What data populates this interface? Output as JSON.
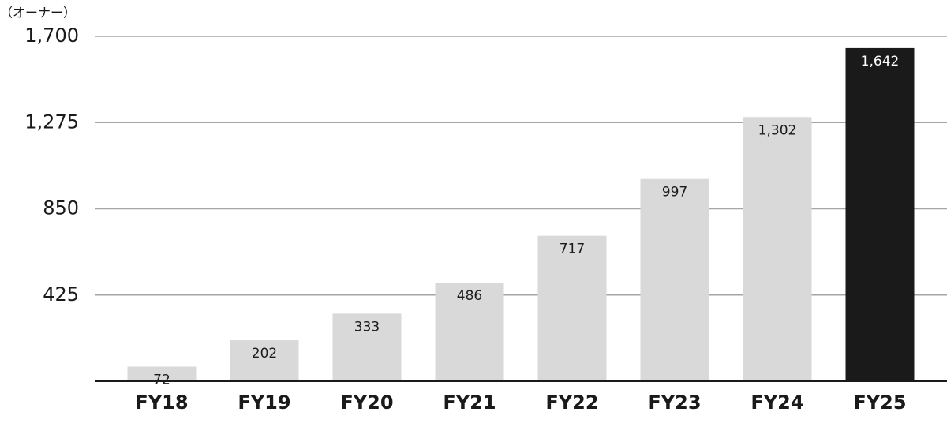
{
  "chart_data": {
    "type": "bar",
    "y_label": "（オーナー）",
    "categories": [
      "FY18",
      "FY19",
      "FY20",
      "FY21",
      "FY22",
      "FY23",
      "FY24",
      "FY25"
    ],
    "values": [
      72,
      202,
      333,
      486,
      717,
      997,
      1302,
      1642
    ],
    "value_labels": [
      "72",
      "202",
      "333",
      "486",
      "717",
      "997",
      "1,302",
      "1,642"
    ],
    "colors": [
      "#d9d9d9",
      "#d9d9d9",
      "#d9d9d9",
      "#d9d9d9",
      "#d9d9d9",
      "#d9d9d9",
      "#d9d9d9",
      "#1a1a1a"
    ],
    "ylim": [
      0,
      1700
    ],
    "yticks": [
      425,
      850,
      {
        "value": 1275,
        "label": "1,275"
      },
      {
        "value": 1700,
        "label": "1,700"
      }
    ],
    "grid": true
  }
}
